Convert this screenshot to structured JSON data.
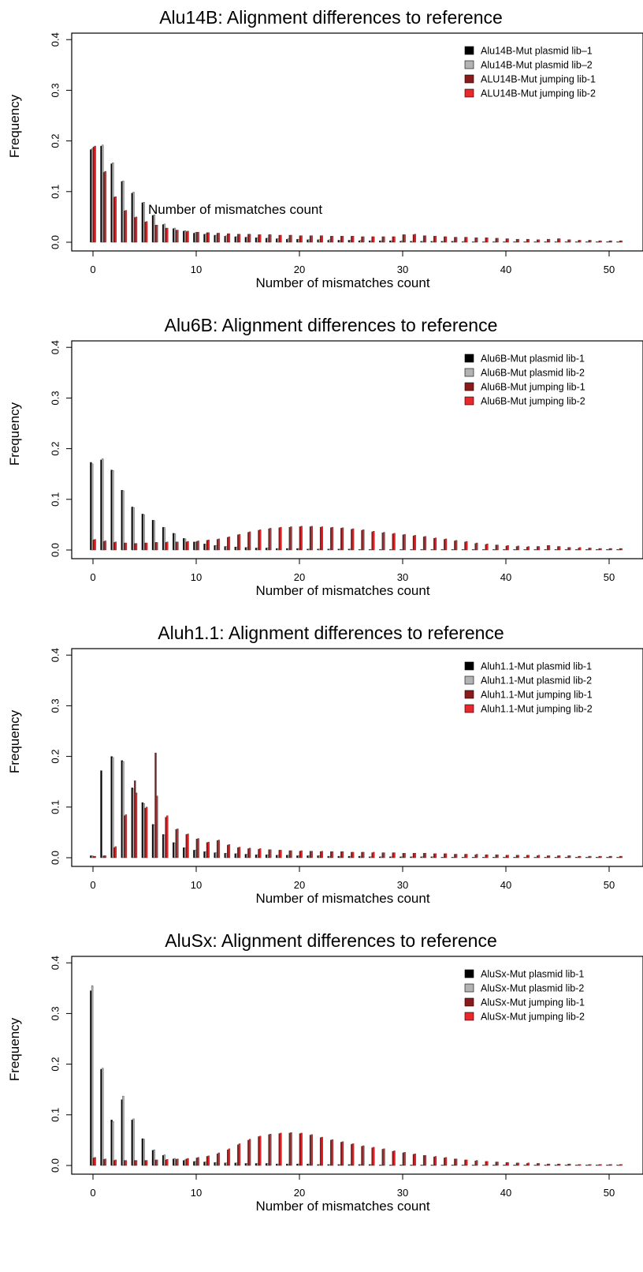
{
  "chart_data": [
    {
      "type": "bar",
      "title": "Alu14B: Alignment differences to reference",
      "xlabel": "Number of mismatches count",
      "ylabel": "Frequency",
      "annotation": "Number of mismatches count",
      "xlim": [
        -1,
        52
      ],
      "ylim": [
        0,
        0.4
      ],
      "xticks": [
        0,
        10,
        20,
        30,
        40,
        50
      ],
      "yticks": [
        0.0,
        0.1,
        0.2,
        0.3,
        0.4
      ],
      "legend_position": "top-right",
      "colors": [
        "#000000",
        "#b3b3b3",
        "#8b1a1a",
        "#e8282b"
      ],
      "series": [
        {
          "name": "Alu14B-Mut plasmid lib–1",
          "values": [
            0.183,
            0.19,
            0.155,
            0.12,
            0.097,
            0.078,
            0.053,
            0.035,
            0.027,
            0.022,
            0.018,
            0.016,
            0.014,
            0.012,
            0.011,
            0.01,
            0.009,
            0.008,
            0.007,
            0.006,
            0.006,
            0.005,
            0.005,
            0.004,
            0.004,
            0.004,
            0.003,
            0.003,
            0.003,
            0.003,
            0.002,
            0.002,
            0.002,
            0.002,
            0.002,
            0.002,
            0.001,
            0.001,
            0.001,
            0.001,
            0.001,
            0.001,
            0.001,
            0.001,
            0.001,
            0.001,
            0.001,
            0.001,
            0.001,
            0.001,
            0.001,
            0.001
          ]
        },
        {
          "name": "Alu14B-Mut plasmid lib–2",
          "values": [
            0.185,
            0.192,
            0.157,
            0.121,
            0.099,
            0.079,
            0.054,
            0.036,
            0.028,
            0.023,
            0.019,
            0.016,
            0.014,
            0.013,
            0.011,
            0.01,
            0.009,
            0.008,
            0.007,
            0.007,
            0.006,
            0.005,
            0.005,
            0.005,
            0.004,
            0.004,
            0.004,
            0.003,
            0.003,
            0.003,
            0.003,
            0.002,
            0.002,
            0.002,
            0.002,
            0.002,
            0.002,
            0.001,
            0.001,
            0.001,
            0.001,
            0.001,
            0.001,
            0.001,
            0.001,
            0.001,
            0.001,
            0.001,
            0.001,
            0.001,
            0.001,
            0.001
          ]
        },
        {
          "name": "ALU14B-Mut jumping lib-1",
          "values": [
            0.188,
            0.138,
            0.089,
            0.062,
            0.049,
            0.04,
            0.034,
            0.028,
            0.024,
            0.021,
            0.02,
            0.019,
            0.018,
            0.017,
            0.016,
            0.016,
            0.015,
            0.015,
            0.014,
            0.014,
            0.013,
            0.013,
            0.013,
            0.012,
            0.012,
            0.012,
            0.011,
            0.011,
            0.011,
            0.011,
            0.015,
            0.015,
            0.013,
            0.012,
            0.011,
            0.01,
            0.01,
            0.009,
            0.009,
            0.008,
            0.007,
            0.006,
            0.006,
            0.005,
            0.006,
            0.007,
            0.005,
            0.004,
            0.004,
            0.003,
            0.003,
            0.003
          ]
        },
        {
          "name": "ALU14B-Mut jumping lib-2",
          "values": [
            0.19,
            0.14,
            0.09,
            0.063,
            0.05,
            0.041,
            0.034,
            0.028,
            0.024,
            0.022,
            0.02,
            0.019,
            0.018,
            0.017,
            0.016,
            0.016,
            0.015,
            0.015,
            0.014,
            0.014,
            0.013,
            0.013,
            0.013,
            0.012,
            0.012,
            0.012,
            0.011,
            0.011,
            0.011,
            0.011,
            0.015,
            0.016,
            0.013,
            0.012,
            0.011,
            0.01,
            0.01,
            0.009,
            0.009,
            0.008,
            0.007,
            0.006,
            0.006,
            0.005,
            0.006,
            0.007,
            0.005,
            0.004,
            0.004,
            0.003,
            0.003,
            0.003
          ]
        }
      ]
    },
    {
      "type": "bar",
      "title": "Alu6B: Alignment differences to reference",
      "xlabel": "Number of mismatches count",
      "ylabel": "Frequency",
      "annotation": "",
      "xlim": [
        -1,
        52
      ],
      "ylim": [
        0,
        0.4
      ],
      "xticks": [
        0,
        10,
        20,
        30,
        40,
        50
      ],
      "yticks": [
        0.0,
        0.1,
        0.2,
        0.3,
        0.4
      ],
      "legend_position": "top-right",
      "colors": [
        "#000000",
        "#b3b3b3",
        "#8b1a1a",
        "#e8282b"
      ],
      "series": [
        {
          "name": "Alu6B-Mut plasmid lib-1",
          "values": [
            0.173,
            0.178,
            0.158,
            0.118,
            0.085,
            0.071,
            0.059,
            0.045,
            0.033,
            0.023,
            0.016,
            0.012,
            0.009,
            0.007,
            0.006,
            0.005,
            0.004,
            0.004,
            0.003,
            0.003,
            0.003,
            0.002,
            0.002,
            0.002,
            0.002,
            0.002,
            0.001,
            0.001,
            0.001,
            0.001,
            0.001,
            0.001,
            0.001,
            0.001,
            0.001,
            0.001,
            0.001,
            0.001,
            0.001,
            0.001,
            0.001,
            0.001,
            0.001,
            0.001,
            0.001,
            0.001,
            0.001,
            0.001,
            0.001,
            0.001,
            0.001,
            0.001
          ]
        },
        {
          "name": "Alu6B-Mut plasmid lib-2",
          "values": [
            0.17,
            0.18,
            0.157,
            0.117,
            0.084,
            0.07,
            0.058,
            0.044,
            0.032,
            0.022,
            0.015,
            0.011,
            0.009,
            0.007,
            0.006,
            0.005,
            0.004,
            0.004,
            0.003,
            0.003,
            0.003,
            0.002,
            0.002,
            0.002,
            0.002,
            0.002,
            0.001,
            0.001,
            0.001,
            0.001,
            0.001,
            0.001,
            0.001,
            0.001,
            0.001,
            0.001,
            0.001,
            0.001,
            0.001,
            0.001,
            0.001,
            0.001,
            0.001,
            0.001,
            0.001,
            0.001,
            0.001,
            0.001,
            0.001,
            0.001,
            0.001,
            0.001
          ]
        },
        {
          "name": "Alu6B-Mut jumping lib-1",
          "values": [
            0.02,
            0.017,
            0.015,
            0.014,
            0.013,
            0.014,
            0.015,
            0.015,
            0.016,
            0.016,
            0.017,
            0.019,
            0.021,
            0.025,
            0.03,
            0.035,
            0.039,
            0.042,
            0.044,
            0.045,
            0.046,
            0.046,
            0.045,
            0.044,
            0.043,
            0.041,
            0.039,
            0.036,
            0.034,
            0.032,
            0.03,
            0.028,
            0.026,
            0.023,
            0.021,
            0.018,
            0.016,
            0.013,
            0.011,
            0.01,
            0.008,
            0.007,
            0.006,
            0.007,
            0.009,
            0.007,
            0.005,
            0.004,
            0.004,
            0.003,
            0.003,
            0.003
          ]
        },
        {
          "name": "Alu6B-Mut jumping lib-2",
          "values": [
            0.021,
            0.018,
            0.016,
            0.014,
            0.013,
            0.014,
            0.015,
            0.016,
            0.016,
            0.017,
            0.018,
            0.02,
            0.022,
            0.026,
            0.031,
            0.036,
            0.04,
            0.043,
            0.045,
            0.046,
            0.047,
            0.047,
            0.046,
            0.045,
            0.044,
            0.042,
            0.04,
            0.037,
            0.035,
            0.033,
            0.031,
            0.029,
            0.027,
            0.024,
            0.022,
            0.019,
            0.017,
            0.014,
            0.012,
            0.01,
            0.009,
            0.008,
            0.007,
            0.007,
            0.009,
            0.007,
            0.005,
            0.005,
            0.004,
            0.003,
            0.003,
            0.003
          ]
        }
      ]
    },
    {
      "type": "bar",
      "title": "Aluh1.1: Alignment differences to reference",
      "xlabel": "Number of mismatches count",
      "ylabel": "Frequency",
      "annotation": "",
      "xlim": [
        -1,
        52
      ],
      "ylim": [
        0,
        0.4
      ],
      "xticks": [
        0,
        10,
        20,
        30,
        40,
        50
      ],
      "yticks": [
        0.0,
        0.1,
        0.2,
        0.3,
        0.4
      ],
      "legend_position": "top-right",
      "colors": [
        "#000000",
        "#b3b3b3",
        "#8b1a1a",
        "#e8282b"
      ],
      "series": [
        {
          "name": "Aluh1.1-Mut plasmid lib-1",
          "values": [
            0.004,
            0.172,
            0.2,
            0.192,
            0.138,
            0.109,
            0.066,
            0.046,
            0.03,
            0.02,
            0.015,
            0.012,
            0.01,
            0.009,
            0.008,
            0.007,
            0.006,
            0.006,
            0.005,
            0.005,
            0.004,
            0.004,
            0.004,
            0.003,
            0.003,
            0.003,
            0.003,
            0.002,
            0.002,
            0.002,
            0.002,
            0.002,
            0.002,
            0.002,
            0.001,
            0.001,
            0.001,
            0.001,
            0.001,
            0.001,
            0.001,
            0.001,
            0.001,
            0.001,
            0.001,
            0.001,
            0.001,
            0.001,
            0.001,
            0.001,
            0.001,
            0.001
          ]
        },
        {
          "name": "Aluh1.1-Mut plasmid lib-2",
          "values": [
            0.004,
            0.003,
            0.198,
            0.19,
            0.136,
            0.107,
            0.065,
            0.045,
            0.029,
            0.019,
            0.015,
            0.012,
            0.01,
            0.009,
            0.008,
            0.007,
            0.006,
            0.006,
            0.005,
            0.005,
            0.004,
            0.004,
            0.004,
            0.003,
            0.003,
            0.003,
            0.003,
            0.002,
            0.002,
            0.002,
            0.002,
            0.002,
            0.002,
            0.002,
            0.001,
            0.001,
            0.001,
            0.001,
            0.001,
            0.001,
            0.001,
            0.001,
            0.001,
            0.001,
            0.001,
            0.001,
            0.001,
            0.001,
            0.001,
            0.001,
            0.001,
            0.001
          ]
        },
        {
          "name": "Aluh1.1-Mut jumping lib-1",
          "values": [
            0.003,
            0.004,
            0.02,
            0.083,
            0.152,
            0.098,
            0.207,
            0.08,
            0.056,
            0.046,
            0.037,
            0.03,
            0.034,
            0.025,
            0.02,
            0.018,
            0.017,
            0.016,
            0.015,
            0.014,
            0.013,
            0.013,
            0.012,
            0.012,
            0.012,
            0.011,
            0.011,
            0.01,
            0.01,
            0.01,
            0.009,
            0.009,
            0.009,
            0.008,
            0.008,
            0.007,
            0.007,
            0.006,
            0.006,
            0.006,
            0.005,
            0.005,
            0.005,
            0.004,
            0.004,
            0.004,
            0.004,
            0.003,
            0.003,
            0.003,
            0.003,
            0.003
          ]
        },
        {
          "name": "Aluh1.1-Mut jumping lib-2",
          "values": [
            0.003,
            0.004,
            0.022,
            0.085,
            0.128,
            0.1,
            0.122,
            0.083,
            0.057,
            0.047,
            0.038,
            0.031,
            0.035,
            0.026,
            0.021,
            0.019,
            0.018,
            0.016,
            0.015,
            0.014,
            0.014,
            0.013,
            0.013,
            0.012,
            0.012,
            0.011,
            0.011,
            0.011,
            0.01,
            0.01,
            0.009,
            0.009,
            0.009,
            0.008,
            0.008,
            0.007,
            0.007,
            0.007,
            0.006,
            0.006,
            0.005,
            0.005,
            0.005,
            0.005,
            0.004,
            0.004,
            0.004,
            0.003,
            0.003,
            0.003,
            0.003,
            0.003
          ]
        }
      ]
    },
    {
      "type": "bar",
      "title": "AluSx: Alignment differences to reference",
      "xlabel": "Number of mismatches count",
      "ylabel": "Frequency",
      "annotation": "",
      "xlim": [
        -1,
        52
      ],
      "ylim": [
        0,
        0.4
      ],
      "xticks": [
        0,
        10,
        20,
        30,
        40,
        50
      ],
      "yticks": [
        0.0,
        0.1,
        0.2,
        0.3,
        0.4
      ],
      "legend_position": "top-right",
      "colors": [
        "#000000",
        "#b3b3b3",
        "#8b1a1a",
        "#e8282b"
      ],
      "series": [
        {
          "name": "AluSx-Mut plasmid lib-1",
          "values": [
            0.345,
            0.19,
            0.09,
            0.13,
            0.09,
            0.053,
            0.03,
            0.02,
            0.013,
            0.01,
            0.008,
            0.007,
            0.006,
            0.005,
            0.005,
            0.004,
            0.004,
            0.004,
            0.003,
            0.003,
            0.003,
            0.003,
            0.002,
            0.002,
            0.002,
            0.002,
            0.002,
            0.002,
            0.001,
            0.001,
            0.001,
            0.001,
            0.001,
            0.001,
            0.001,
            0.001,
            0.001,
            0.001,
            0.001,
            0.001,
            0.001,
            0.001,
            0.001,
            0.001,
            0.001,
            0.001,
            0.001,
            0.001,
            0.001,
            0.001,
            0.001,
            0.001
          ]
        },
        {
          "name": "AluSx-Mut plasmid lib-2",
          "values": [
            0.355,
            0.192,
            0.087,
            0.137,
            0.092,
            0.052,
            0.031,
            0.021,
            0.014,
            0.011,
            0.008,
            0.007,
            0.006,
            0.005,
            0.005,
            0.004,
            0.004,
            0.004,
            0.003,
            0.003,
            0.003,
            0.003,
            0.002,
            0.002,
            0.002,
            0.002,
            0.002,
            0.002,
            0.001,
            0.001,
            0.001,
            0.001,
            0.001,
            0.001,
            0.001,
            0.001,
            0.001,
            0.001,
            0.001,
            0.001,
            0.001,
            0.001,
            0.001,
            0.001,
            0.001,
            0.001,
            0.001,
            0.001,
            0.001,
            0.001,
            0.001,
            0.001
          ]
        },
        {
          "name": "AluSx-Mut jumping lib-1",
          "values": [
            0.015,
            0.012,
            0.01,
            0.01,
            0.01,
            0.01,
            0.011,
            0.011,
            0.012,
            0.013,
            0.015,
            0.018,
            0.023,
            0.031,
            0.041,
            0.05,
            0.057,
            0.061,
            0.063,
            0.064,
            0.063,
            0.06,
            0.055,
            0.05,
            0.046,
            0.042,
            0.038,
            0.035,
            0.032,
            0.028,
            0.025,
            0.022,
            0.02,
            0.017,
            0.015,
            0.013,
            0.011,
            0.009,
            0.008,
            0.007,
            0.006,
            0.005,
            0.004,
            0.004,
            0.003,
            0.003,
            0.003,
            0.002,
            0.002,
            0.002,
            0.002,
            0.002
          ]
        },
        {
          "name": "AluSx-Mut jumping lib-2",
          "values": [
            0.016,
            0.013,
            0.011,
            0.01,
            0.01,
            0.01,
            0.011,
            0.012,
            0.013,
            0.014,
            0.016,
            0.019,
            0.025,
            0.033,
            0.043,
            0.052,
            0.058,
            0.062,
            0.064,
            0.065,
            0.064,
            0.061,
            0.056,
            0.051,
            0.047,
            0.043,
            0.039,
            0.036,
            0.033,
            0.029,
            0.026,
            0.023,
            0.02,
            0.018,
            0.016,
            0.013,
            0.011,
            0.01,
            0.008,
            0.007,
            0.006,
            0.005,
            0.005,
            0.004,
            0.003,
            0.003,
            0.003,
            0.002,
            0.002,
            0.002,
            0.002,
            0.002
          ]
        }
      ]
    }
  ]
}
